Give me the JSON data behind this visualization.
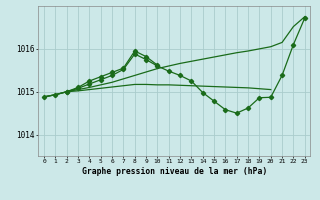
{
  "title": "Graphe pression niveau de la mer (hPa)",
  "bg_color": "#cce8e8",
  "grid_color": "#aacccc",
  "line_color": "#1a6b1a",
  "xlim": [
    -0.5,
    23.5
  ],
  "ylim": [
    1013.5,
    1017.0
  ],
  "yticks": [
    1014,
    1015,
    1016
  ],
  "xtick_labels": [
    "0",
    "1",
    "2",
    "3",
    "4",
    "5",
    "6",
    "7",
    "8",
    "9",
    "10",
    "11",
    "12",
    "13",
    "14",
    "15",
    "16",
    "17",
    "18",
    "19",
    "20",
    "21",
    "22",
    "23"
  ],
  "series1_x": [
    0,
    1,
    2,
    3,
    4,
    5,
    6,
    7,
    8,
    9,
    10,
    11,
    12,
    13,
    14,
    15,
    16,
    17,
    18,
    19,
    20,
    21,
    22,
    23
  ],
  "series1_y": [
    1014.88,
    1014.93,
    1015.0,
    1015.05,
    1015.1,
    1015.16,
    1015.22,
    1015.3,
    1015.38,
    1015.46,
    1015.54,
    1015.6,
    1015.66,
    1015.71,
    1015.76,
    1015.81,
    1015.86,
    1015.91,
    1015.95,
    1016.0,
    1016.05,
    1016.15,
    1016.52,
    1016.75
  ],
  "series2_x": [
    0,
    1,
    2,
    3,
    4,
    5,
    6,
    7,
    8,
    9,
    10,
    11,
    12,
    13,
    14,
    15,
    16,
    17,
    18,
    19,
    20,
    21,
    22,
    23
  ],
  "series2_y": [
    1014.88,
    1014.93,
    1015.0,
    1015.08,
    1015.18,
    1015.28,
    1015.38,
    1015.52,
    1015.88,
    1015.75,
    1015.6,
    1015.48,
    1015.38,
    1015.25,
    1014.98,
    1014.78,
    1014.58,
    1014.5,
    1014.62,
    1014.86,
    1014.87,
    1015.38,
    1016.1,
    1016.72
  ],
  "series3_x": [
    0,
    1,
    2,
    3,
    4,
    5,
    6,
    7,
    8,
    9,
    10,
    11,
    12,
    13,
    14,
    15,
    16,
    17,
    18,
    19,
    20
  ],
  "series3_y": [
    1014.88,
    1014.93,
    1015.0,
    1015.02,
    1015.05,
    1015.08,
    1015.11,
    1015.14,
    1015.17,
    1015.17,
    1015.16,
    1015.16,
    1015.15,
    1015.14,
    1015.13,
    1015.12,
    1015.11,
    1015.1,
    1015.09,
    1015.07,
    1015.05
  ],
  "series4_x": [
    2,
    3,
    4,
    5,
    6,
    7,
    8,
    9,
    10
  ],
  "series4_y": [
    1015.0,
    1015.1,
    1015.25,
    1015.35,
    1015.45,
    1015.55,
    1015.95,
    1015.82,
    1015.62
  ]
}
